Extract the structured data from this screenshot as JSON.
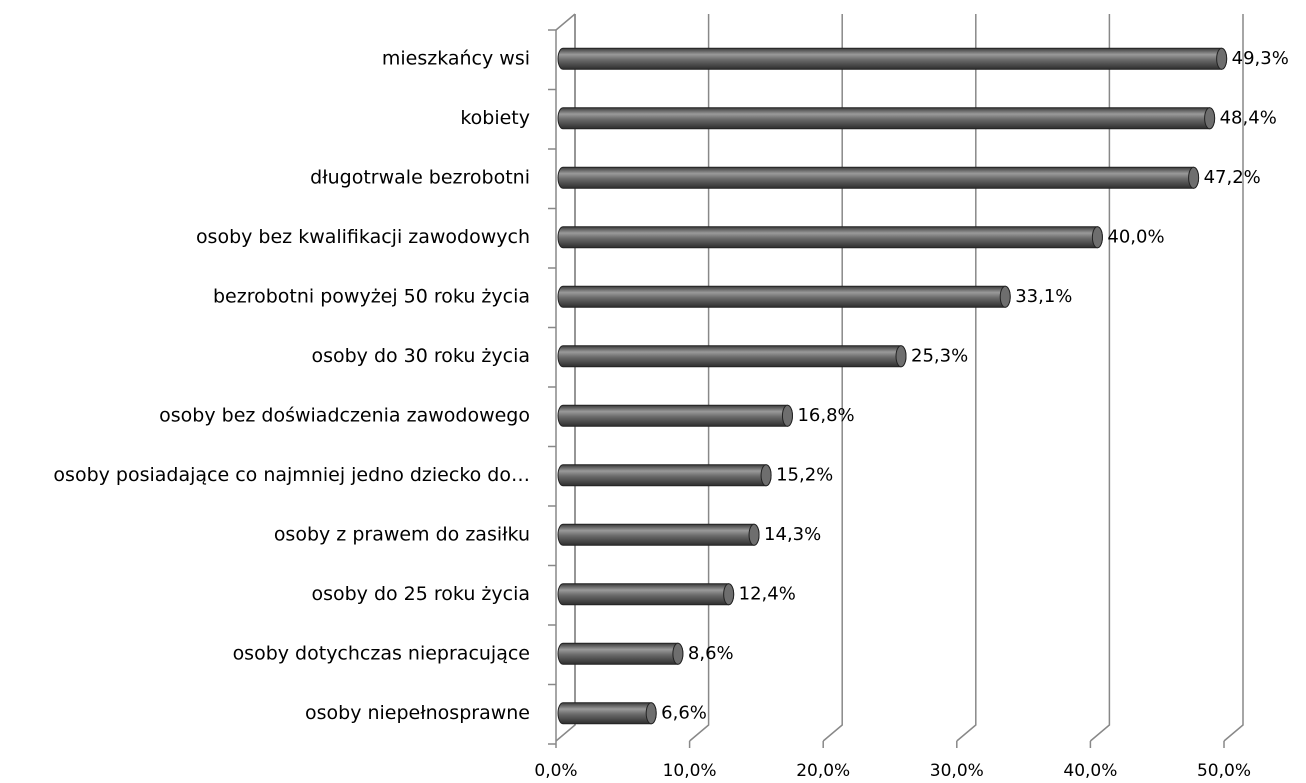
{
  "chart_data": {
    "type": "bar",
    "orientation": "horizontal",
    "color": "#5a5a5a",
    "categories": [
      "mieszkańcy wsi",
      "kobiety",
      "długotrwale bezrobotni",
      "osoby bez kwalifikacji zawodowych",
      "bezrobotni powyżej 50 roku życia",
      "osoby do 30 roku życia",
      "osoby bez doświadczenia zawodowego",
      "osoby posiadające co najmniej jedno dziecko do…",
      "osoby z prawem do zasiłku",
      "osoby do 25 roku życia",
      "osoby dotychczas niepracujące",
      "osoby niepełnosprawne"
    ],
    "values": [
      49.3,
      48.4,
      47.2,
      40.0,
      33.1,
      25.3,
      16.8,
      15.2,
      14.3,
      12.4,
      8.6,
      6.6
    ],
    "value_labels": [
      "49,3%",
      "48,4%",
      "47,2%",
      "40,0%",
      "33,1%",
      "25,3%",
      "16,8%",
      "15,2%",
      "14,3%",
      "12,4%",
      "8,6%",
      "6,6%"
    ],
    "xlim": [
      0,
      50
    ],
    "xticks": [
      {
        "value": 0,
        "label": "0,0%"
      },
      {
        "value": 10,
        "label": "10,0%"
      },
      {
        "value": 20,
        "label": "20,0%"
      },
      {
        "value": 30,
        "label": "30,0%"
      },
      {
        "value": 40,
        "label": "40,0%"
      },
      {
        "value": 50,
        "label": "50,0%"
      }
    ],
    "grid": true
  }
}
